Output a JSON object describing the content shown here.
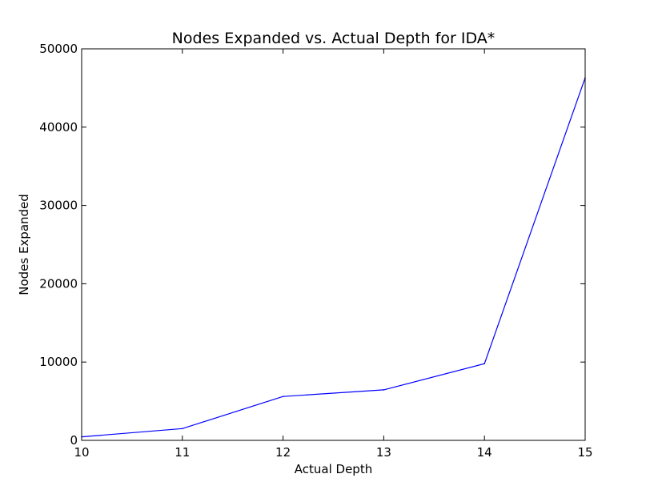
{
  "chart_data": {
    "type": "line",
    "title": "Nodes Expanded vs. Actual Depth for IDA*",
    "xlabel": "Actual Depth",
    "ylabel": "Nodes Expanded",
    "xlim": [
      10,
      15
    ],
    "ylim": [
      0,
      50000
    ],
    "x_ticks": [
      "10",
      "11",
      "12",
      "13",
      "14",
      "15"
    ],
    "y_ticks": [
      "0",
      "10000",
      "20000",
      "30000",
      "40000",
      "50000"
    ],
    "grid": false,
    "series": [
      {
        "color": "#0000ff",
        "x": [
          10,
          11,
          12,
          13,
          14,
          15
        ],
        "values": [
          450,
          1500,
          5600,
          6450,
          9800,
          46300
        ]
      }
    ]
  }
}
